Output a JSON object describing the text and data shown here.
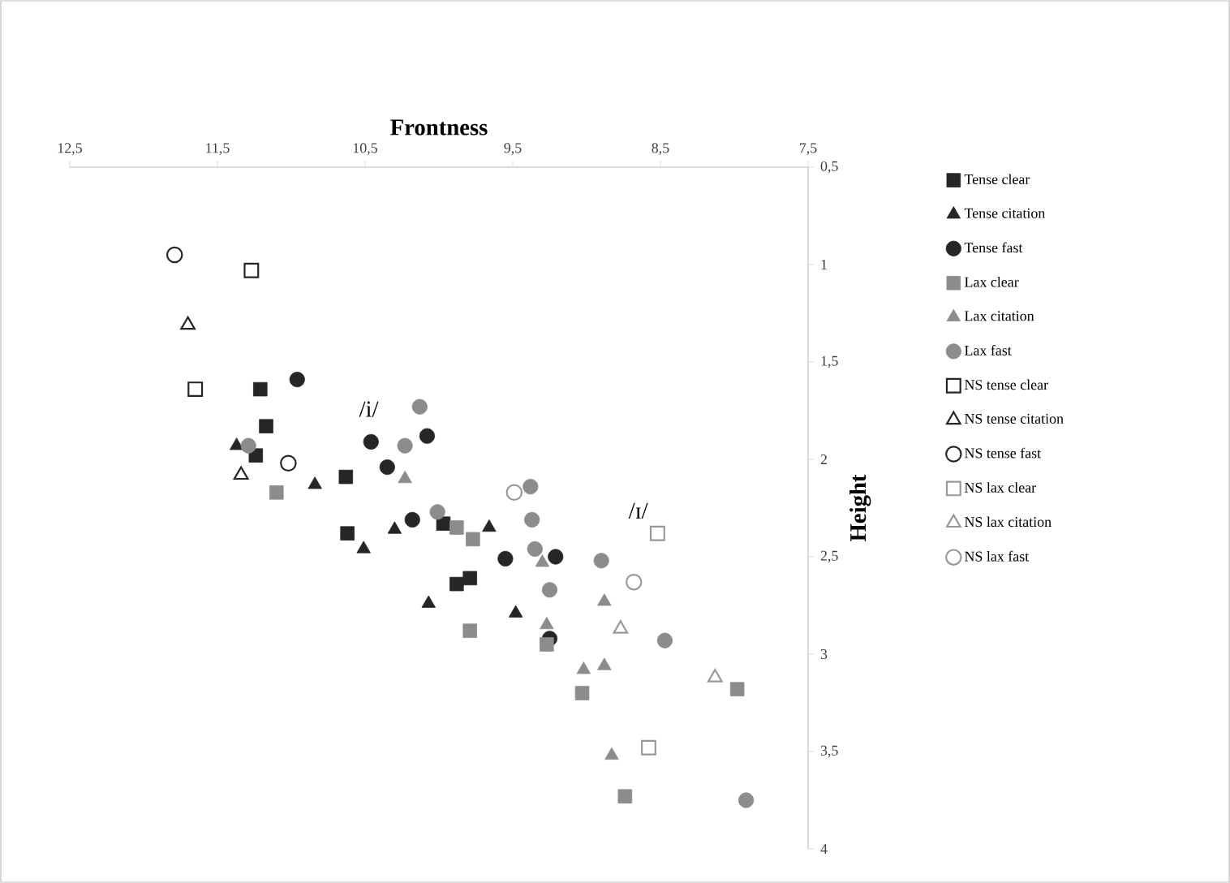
{
  "chart_data": {
    "type": "scatter",
    "xlabel": "Frontness",
    "ylabel": "Height",
    "xlim": [
      12.5,
      7.5
    ],
    "ylim": [
      4,
      0.5
    ],
    "xticks": [
      {
        "value": 12.5,
        "label": "12,5"
      },
      {
        "value": 11.5,
        "label": "11,5"
      },
      {
        "value": 10.5,
        "label": "10,5"
      },
      {
        "value": 9.5,
        "label": "9,5"
      },
      {
        "value": 8.5,
        "label": "8,5"
      },
      {
        "value": 7.5,
        "label": "7,5"
      }
    ],
    "yticks": [
      {
        "value": 0.5,
        "label": "0,5"
      },
      1,
      {
        "value": 1.5,
        "label": "1,5"
      },
      2,
      {
        "value": 2.5,
        "label": "2,5"
      },
      3,
      {
        "value": 3.5,
        "label": "3,5"
      },
      4
    ],
    "grid": false,
    "legend": "right",
    "annotations": [
      "/i/",
      "/ɪ/"
    ],
    "series": [
      {
        "name": "Tense clear",
        "color": "#262626",
        "marker": "square",
        "x": [
          11.21,
          11.17,
          11.24,
          10.63,
          10.62,
          9.97,
          9.88,
          9.79
        ],
        "values": [
          1.64,
          1.83,
          1.98,
          2.09,
          2.38,
          2.33,
          2.64,
          2.61
        ]
      },
      {
        "name": "Tense citation",
        "color": "#262626",
        "marker": "triangle",
        "x": [
          11.37,
          10.84,
          10.51,
          10.3,
          10.07,
          9.66,
          9.48
        ],
        "values": [
          1.93,
          2.13,
          2.46,
          2.36,
          2.74,
          2.35,
          2.79
        ]
      },
      {
        "name": "Tense fast",
        "color": "#262626",
        "marker": "circle",
        "x": [
          10.96,
          10.46,
          10.08,
          10.35,
          10.18,
          9.55,
          9.21,
          9.25
        ],
        "values": [
          1.59,
          1.91,
          1.88,
          2.04,
          2.31,
          2.51,
          2.5,
          2.92
        ]
      },
      {
        "name": "Lax clear",
        "color": "#8c8c8c",
        "marker": "square",
        "x": [
          11.1,
          9.88,
          9.77,
          9.79,
          9.27,
          9.03,
          7.98,
          8.74
        ],
        "values": [
          2.17,
          2.35,
          2.41,
          2.88,
          2.95,
          3.2,
          3.18,
          3.73
        ]
      },
      {
        "name": "Lax citation",
        "color": "#8c8c8c",
        "marker": "triangle",
        "x": [
          10.23,
          9.3,
          9.02,
          8.88,
          8.88,
          8.83,
          9.27
        ],
        "values": [
          2.1,
          2.53,
          3.08,
          3.06,
          2.73,
          3.52,
          2.85
        ]
      },
      {
        "name": "Lax fast",
        "color": "#8c8c8c",
        "marker": "circle",
        "x": [
          11.29,
          10.13,
          10.23,
          10.01,
          9.38,
          9.37,
          9.35,
          9.25,
          8.9,
          8.47,
          7.92
        ],
        "values": [
          1.93,
          1.73,
          1.93,
          2.27,
          2.14,
          2.31,
          2.46,
          2.67,
          2.52,
          2.93,
          3.75
        ]
      },
      {
        "name": "NS tense clear",
        "color": "#262626",
        "marker": "square-open",
        "x": [
          11.27,
          11.65
        ],
        "values": [
          1.03,
          1.64
        ]
      },
      {
        "name": "NS tense citation",
        "color": "#262626",
        "marker": "triangle-open",
        "x": [
          11.7,
          11.34
        ],
        "values": [
          1.31,
          2.08
        ]
      },
      {
        "name": "NS tense fast",
        "color": "#262626",
        "marker": "circle-open",
        "x": [
          11.79,
          11.02
        ],
        "values": [
          0.95,
          2.02
        ]
      },
      {
        "name": "NS lax clear",
        "color": "#999999",
        "marker": "square-open",
        "x": [
          8.52,
          8.58
        ],
        "values": [
          2.38,
          3.48
        ]
      },
      {
        "name": "NS lax citation",
        "color": "#999999",
        "marker": "triangle-open",
        "x": [
          8.77,
          8.13
        ],
        "values": [
          2.87,
          3.12
        ]
      },
      {
        "name": "NS lax fast",
        "color": "#999999",
        "marker": "circle-open",
        "x": [
          9.49,
          8.68
        ],
        "values": [
          2.17,
          2.63
        ]
      }
    ]
  }
}
